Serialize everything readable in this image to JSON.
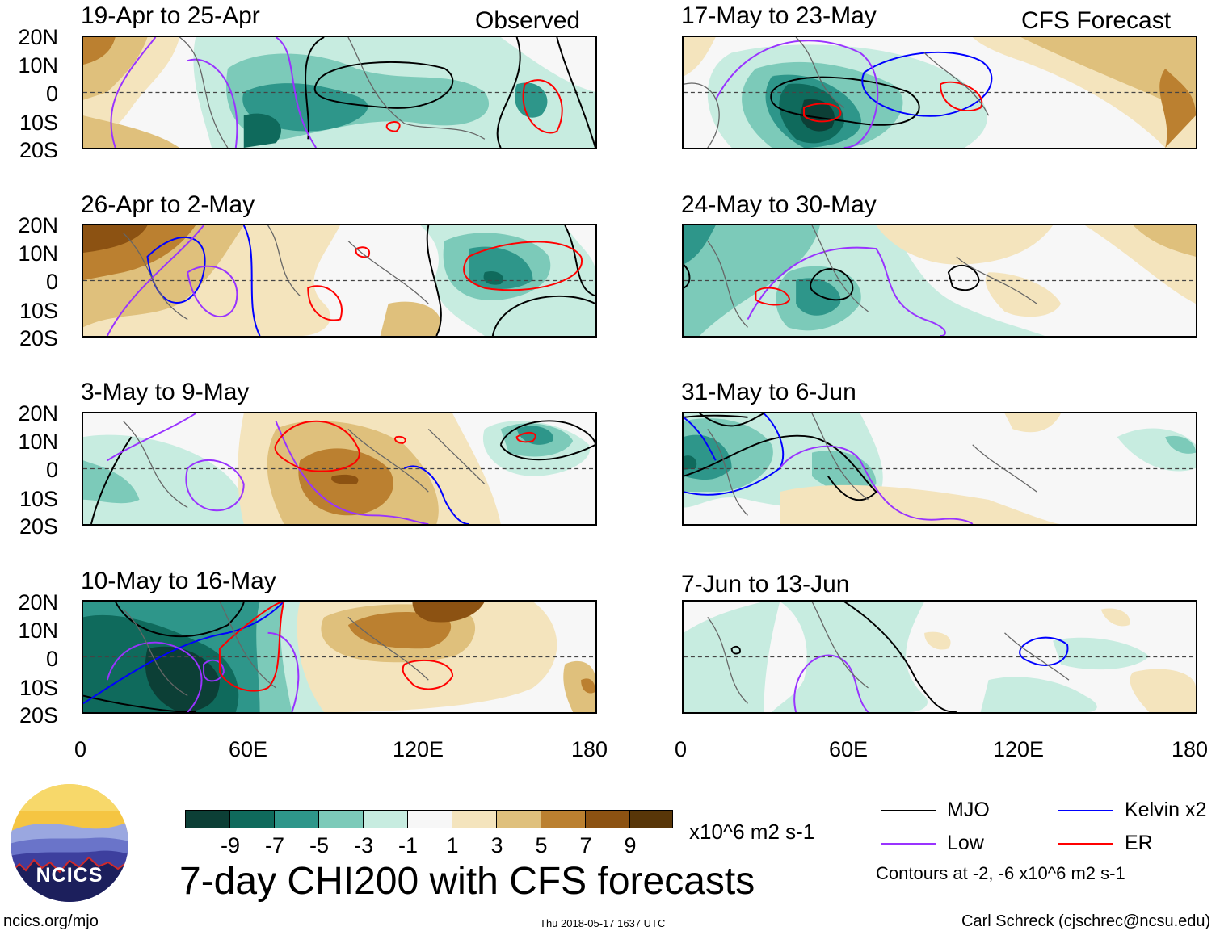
{
  "figure_title": "7-day CHI200 with CFS forecasts",
  "units": "x10^6 m2 s-1",
  "site": "ncics.org/mjo",
  "timestamp": "Thu 2018-05-17 1637 UTC",
  "author": "Carl Schreck (cjschrec@ncsu.edu)",
  "logo_text": "NCICS",
  "observed_label": "Observed",
  "forecast_label": "CFS Forecast",
  "lat_labels": [
    "20N",
    "10N",
    "0",
    "10S",
    "20S"
  ],
  "lon_labels": [
    "0",
    "60E",
    "120E",
    "180"
  ],
  "panels_left": [
    {
      "title": "19-Apr to 25-Apr"
    },
    {
      "title": "26-Apr to 2-May"
    },
    {
      "title": "3-May to 9-May"
    },
    {
      "title": "10-May to 16-May"
    }
  ],
  "panels_right": [
    {
      "title": "17-May to 23-May"
    },
    {
      "title": "24-May to 30-May"
    },
    {
      "title": "31-May to 6-Jun"
    },
    {
      "title": "7-Jun to 13-Jun"
    }
  ],
  "colorbar": {
    "tick_labels": [
      "-9",
      "-7",
      "-5",
      "-3",
      "-1",
      "1",
      "3",
      "5",
      "7",
      "9"
    ],
    "colors": [
      "#0c3f36",
      "#0f6a5c",
      "#2e968a",
      "#7ccab9",
      "#c7ece0",
      "#f7f7f7",
      "#f4e4bd",
      "#dfc07c",
      "#bb8030",
      "#8c5212",
      "#583608"
    ]
  },
  "legend": {
    "items": [
      {
        "label": "MJO",
        "color": "#000000"
      },
      {
        "label": "Kelvin x2",
        "color": "#0000ff"
      },
      {
        "label": "Low",
        "color": "#9933ff"
      },
      {
        "label": "ER",
        "color": "#ff0000"
      }
    ],
    "note": "Contours at -2, -6 x10^6 m2 s-1"
  }
}
